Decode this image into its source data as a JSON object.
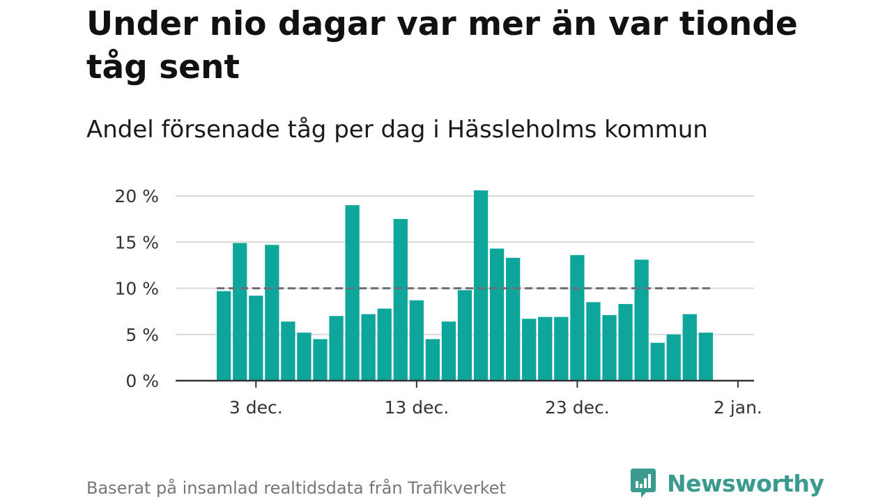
{
  "title": "Under nio dagar var mer än var tionde tåg sent",
  "subtitle": "Andel försenade tåg per dag i Hässleholms kommun",
  "source": "Baserat på insamlad realtidsdata från Trafikverket",
  "brand": {
    "name": "Newsworthy",
    "color": "#3a9a8e"
  },
  "colors": {
    "bar": "#0ea69b",
    "reference": "#6f6f78",
    "grid": "#d9d9d9",
    "axis": "#333333"
  },
  "chart_data": {
    "type": "bar",
    "title": "Under nio dagar var mer än var tionde tåg sent",
    "subtitle": "Andel försenade tåg per dag i Hässleholms kommun",
    "x_unit": "day",
    "x": [
      "2020-12-01",
      "2020-12-02",
      "2020-12-03",
      "2020-12-04",
      "2020-12-05",
      "2020-12-06",
      "2020-12-07",
      "2020-12-08",
      "2020-12-09",
      "2020-12-10",
      "2020-12-11",
      "2020-12-12",
      "2020-12-13",
      "2020-12-14",
      "2020-12-15",
      "2020-12-16",
      "2020-12-17",
      "2020-12-18",
      "2020-12-19",
      "2020-12-20",
      "2020-12-21",
      "2020-12-22",
      "2020-12-23",
      "2020-12-24",
      "2020-12-25",
      "2020-12-26",
      "2020-12-27",
      "2020-12-28",
      "2020-12-29",
      "2020-12-30",
      "2020-12-31"
    ],
    "values": [
      9.7,
      14.9,
      9.2,
      14.7,
      6.4,
      5.2,
      4.5,
      7.0,
      19.0,
      7.2,
      7.8,
      17.5,
      8.7,
      4.5,
      6.4,
      9.8,
      20.6,
      14.3,
      13.3,
      6.7,
      6.9,
      6.9,
      13.6,
      8.5,
      7.1,
      8.3,
      13.1,
      4.1,
      5.0,
      7.2,
      5.2
    ],
    "reference_line": 10,
    "xlim": [
      "2020-11-28",
      "2021-01-03"
    ],
    "ylim": [
      0,
      20
    ],
    "y_ticks": [
      0,
      5,
      10,
      15,
      20
    ],
    "y_tick_labels": [
      "0 %",
      "5 %",
      "10 %",
      "15 %",
      "20 %"
    ],
    "x_ticks": [
      "2020-12-03",
      "2020-12-13",
      "2020-12-23",
      "2021-01-02"
    ],
    "x_tick_labels": [
      "3 dec.",
      "13 dec.",
      "23 dec.",
      "2 jan."
    ],
    "grid": true
  }
}
